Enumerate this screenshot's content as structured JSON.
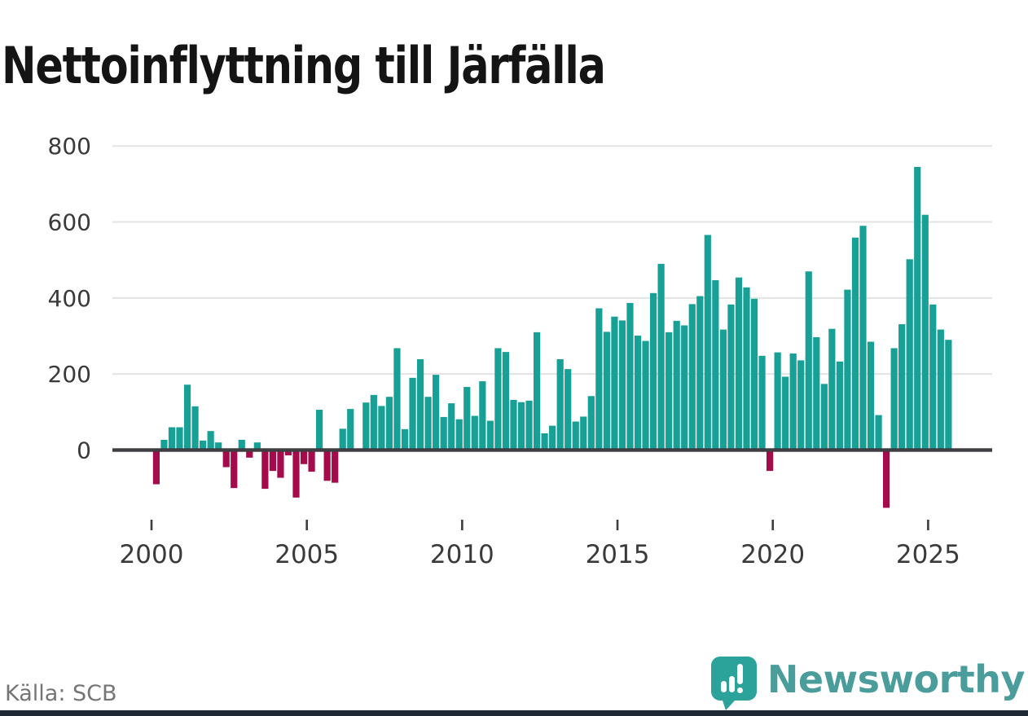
{
  "title": "Nettoinflyttning till Järfälla",
  "footer": {
    "source": "Källa: SCB",
    "brand": "Newsworthy"
  },
  "colors": {
    "positive": "#17a096",
    "negative": "#a30b4a",
    "axis": "#3d3d42",
    "grid": "#e3e3e3",
    "tick_label": "#3a3a3a",
    "source_text": "#757575",
    "brand_teal": "#4a9d9b",
    "badge_teal": "#2ca39a",
    "bottom_strip": "#1e2935"
  },
  "chart_data": {
    "type": "bar",
    "title": "Nettoinflyttning till Järfälla",
    "frequency": "quarterly",
    "x_start": {
      "year": 2000,
      "quarter": 1
    },
    "x_end": {
      "year": 2025,
      "quarter": 3
    },
    "values": [
      -90,
      27,
      60,
      60,
      172,
      115,
      25,
      50,
      20,
      -45,
      -100,
      27,
      -20,
      20,
      -102,
      -55,
      -73,
      -14,
      -125,
      -37,
      -57,
      106,
      -81,
      -86,
      56,
      108,
      0,
      125,
      145,
      116,
      140,
      268,
      55,
      190,
      239,
      140,
      198,
      87,
      123,
      81,
      166,
      90,
      181,
      77,
      268,
      258,
      132,
      126,
      130,
      310,
      44,
      64,
      239,
      213,
      75,
      88,
      142,
      373,
      311,
      351,
      341,
      387,
      301,
      287,
      413,
      490,
      310,
      340,
      328,
      384,
      405,
      566,
      447,
      317,
      383,
      454,
      428,
      398,
      248,
      -55,
      257,
      193,
      254,
      236,
      470,
      297,
      174,
      319,
      233,
      422,
      559,
      590,
      285,
      92,
      -152,
      268,
      331,
      502,
      745,
      619,
      383,
      317,
      290
    ],
    "x_ticks": [
      2000,
      2005,
      2010,
      2015,
      2020,
      2025
    ],
    "y_ticks": [
      0,
      200,
      400,
      600,
      800
    ],
    "ylim": [
      -170,
      820
    ],
    "grid": "horizontal",
    "legend": "none",
    "positive_color": "#17a096",
    "negative_color": "#a30b4a"
  }
}
